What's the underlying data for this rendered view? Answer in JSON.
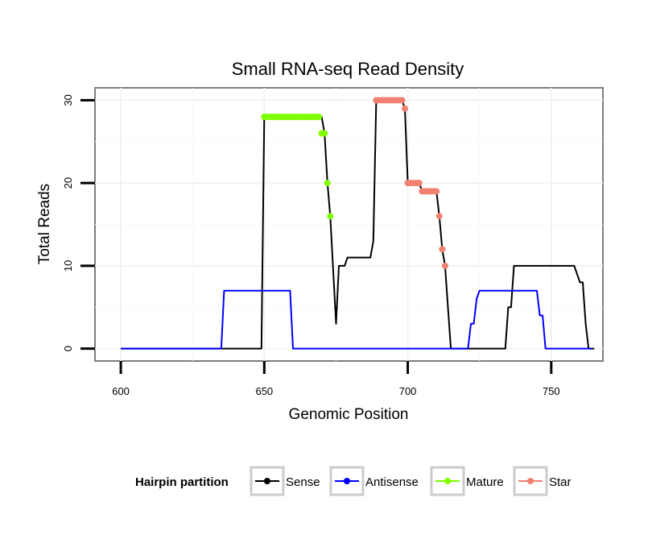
{
  "chart_data": {
    "type": "line",
    "title": "Small RNA-seq Read Density",
    "xlabel": "Genomic Position",
    "ylabel": "Total Reads",
    "xlim": [
      591,
      768
    ],
    "ylim": [
      -1.5,
      31.5
    ],
    "xticks": [
      600,
      650,
      700,
      750
    ],
    "yticks": [
      0,
      10,
      20,
      30
    ],
    "legend_title": "Hairpin partition",
    "legend_position": "bottom",
    "series": [
      {
        "name": "Sense",
        "color": "#000000",
        "type": "line",
        "points": [
          [
            600,
            0
          ],
          [
            649,
            0
          ],
          [
            650,
            28
          ],
          [
            670,
            28
          ],
          [
            671,
            26
          ],
          [
            672,
            20
          ],
          [
            673,
            16
          ],
          [
            675,
            3
          ],
          [
            676,
            10
          ],
          [
            678,
            10
          ],
          [
            679,
            11
          ],
          [
            687,
            11
          ],
          [
            688,
            13
          ],
          [
            689,
            30
          ],
          [
            698,
            30
          ],
          [
            699,
            29
          ],
          [
            700,
            20
          ],
          [
            704,
            20
          ],
          [
            705,
            19
          ],
          [
            710,
            19
          ],
          [
            711,
            16
          ],
          [
            712,
            12
          ],
          [
            713,
            10
          ],
          [
            715,
            0
          ],
          [
            734,
            0
          ],
          [
            735,
            5
          ],
          [
            736,
            5
          ],
          [
            737,
            10
          ],
          [
            758,
            10
          ],
          [
            760,
            8
          ],
          [
            761,
            8
          ],
          [
            762,
            3
          ],
          [
            763,
            0
          ],
          [
            765,
            0
          ]
        ]
      },
      {
        "name": "Antisense",
        "color": "#0000ff",
        "type": "line",
        "points": [
          [
            600,
            0
          ],
          [
            635,
            0
          ],
          [
            636,
            7
          ],
          [
            659,
            7
          ],
          [
            660,
            0
          ],
          [
            721,
            0
          ],
          [
            722,
            3
          ],
          [
            723,
            3
          ],
          [
            724,
            6
          ],
          [
            725,
            7
          ],
          [
            745,
            7
          ],
          [
            746,
            4
          ],
          [
            747,
            4
          ],
          [
            748,
            0
          ],
          [
            764,
            0
          ]
        ]
      },
      {
        "name": "Mature",
        "color": "#7fff00",
        "type": "points",
        "points": [
          [
            650,
            28
          ],
          [
            651,
            28
          ],
          [
            652,
            28
          ],
          [
            653,
            28
          ],
          [
            654,
            28
          ],
          [
            655,
            28
          ],
          [
            656,
            28
          ],
          [
            657,
            28
          ],
          [
            658,
            28
          ],
          [
            659,
            28
          ],
          [
            660,
            28
          ],
          [
            661,
            28
          ],
          [
            662,
            28
          ],
          [
            663,
            28
          ],
          [
            664,
            28
          ],
          [
            665,
            28
          ],
          [
            666,
            28
          ],
          [
            667,
            28
          ],
          [
            668,
            28
          ],
          [
            669,
            28
          ],
          [
            670,
            26
          ],
          [
            671,
            26
          ],
          [
            672,
            20
          ],
          [
            673,
            16
          ]
        ]
      },
      {
        "name": "Star",
        "color": "#f08070",
        "type": "points",
        "points": [
          [
            689,
            30
          ],
          [
            690,
            30
          ],
          [
            691,
            30
          ],
          [
            692,
            30
          ],
          [
            693,
            30
          ],
          [
            694,
            30
          ],
          [
            695,
            30
          ],
          [
            696,
            30
          ],
          [
            697,
            30
          ],
          [
            698,
            30
          ],
          [
            699,
            29
          ],
          [
            700,
            20
          ],
          [
            701,
            20
          ],
          [
            702,
            20
          ],
          [
            703,
            20
          ],
          [
            704,
            20
          ],
          [
            705,
            19
          ],
          [
            706,
            19
          ],
          [
            707,
            19
          ],
          [
            708,
            19
          ],
          [
            709,
            19
          ],
          [
            710,
            19
          ],
          [
            711,
            16
          ],
          [
            712,
            12
          ],
          [
            713,
            10
          ]
        ]
      }
    ]
  }
}
